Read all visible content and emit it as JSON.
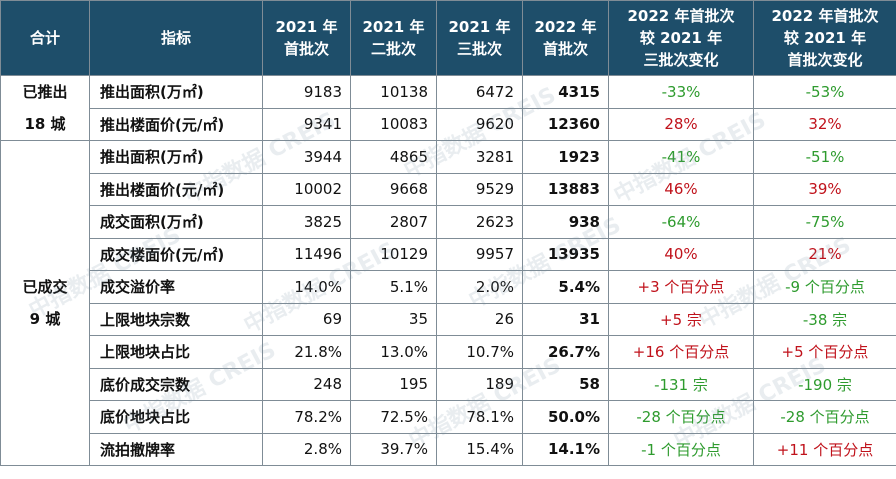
{
  "colors": {
    "header_bg": "#1e4e6a",
    "positive": "#c0121b",
    "negative": "#2e9b2e"
  },
  "header": {
    "c0": "合计",
    "c1": "指标",
    "c2": [
      "2021 年",
      "首批次"
    ],
    "c3": [
      "2021 年",
      "二批次"
    ],
    "c4": [
      "2021 年",
      "三批次"
    ],
    "c5": [
      "2022 年",
      "首批次"
    ],
    "c6": [
      "2022 年首批次",
      "较 2021 年",
      "三批次变化"
    ],
    "c7": [
      "2022 年首批次",
      "较 2021 年",
      "首批次变化"
    ]
  },
  "groups": [
    {
      "lines": [
        "已推出",
        "18 城"
      ]
    },
    {
      "lines": [
        "已成交",
        "9 城"
      ]
    }
  ],
  "rows": [
    {
      "indicator": "推出面积(万㎡)",
      "v2021_1": "9183",
      "v2021_2": "10138",
      "v2021_3": "6472",
      "v2022_1": "4315",
      "chg_vs_3": "-33%",
      "chg_vs_1": "-53%"
    },
    {
      "indicator": "推出楼面价(元/㎡)",
      "v2021_1": "9341",
      "v2021_2": "10083",
      "v2021_3": "9620",
      "v2022_1": "12360",
      "chg_vs_3": "28%",
      "chg_vs_1": "32%"
    },
    {
      "indicator": "推出面积(万㎡)",
      "v2021_1": "3944",
      "v2021_2": "4865",
      "v2021_3": "3281",
      "v2022_1": "1923",
      "chg_vs_3": "-41%",
      "chg_vs_1": "-51%"
    },
    {
      "indicator": "推出楼面价(元/㎡)",
      "v2021_1": "10002",
      "v2021_2": "9668",
      "v2021_3": "9529",
      "v2022_1": "13883",
      "chg_vs_3": "46%",
      "chg_vs_1": "39%"
    },
    {
      "indicator": "成交面积(万㎡)",
      "v2021_1": "3825",
      "v2021_2": "2807",
      "v2021_3": "2623",
      "v2022_1": "938",
      "chg_vs_3": "-64%",
      "chg_vs_1": "-75%"
    },
    {
      "indicator": "成交楼面价(元/㎡)",
      "v2021_1": "11496",
      "v2021_2": "10129",
      "v2021_3": "9957",
      "v2022_1": "13935",
      "chg_vs_3": "40%",
      "chg_vs_1": "21%"
    },
    {
      "indicator": "成交溢价率",
      "v2021_1": "14.0%",
      "v2021_2": "5.1%",
      "v2021_3": "2.0%",
      "v2022_1": "5.4%",
      "chg_vs_3": "+3 个百分点",
      "chg_vs_1": "-9 个百分点"
    },
    {
      "indicator": "上限地块宗数",
      "v2021_1": "69",
      "v2021_2": "35",
      "v2021_3": "26",
      "v2022_1": "31",
      "chg_vs_3": "+5 宗",
      "chg_vs_1": "-38 宗"
    },
    {
      "indicator": "上限地块占比",
      "v2021_1": "21.8%",
      "v2021_2": "13.0%",
      "v2021_3": "10.7%",
      "v2022_1": "26.7%",
      "chg_vs_3": "+16 个百分点",
      "chg_vs_1": "+5 个百分点"
    },
    {
      "indicator": "底价成交宗数",
      "v2021_1": "248",
      "v2021_2": "195",
      "v2021_3": "189",
      "v2022_1": "58",
      "chg_vs_3": "-131 宗",
      "chg_vs_1": "-190 宗"
    },
    {
      "indicator": "底价地块占比",
      "v2021_1": "78.2%",
      "v2021_2": "72.5%",
      "v2021_3": "78.1%",
      "v2022_1": "50.0%",
      "chg_vs_3": "-28 个百分点",
      "chg_vs_1": "-28 个百分点"
    },
    {
      "indicator": "流拍撤牌率",
      "v2021_1": "2.8%",
      "v2021_2": "39.7%",
      "v2021_3": "15.4%",
      "v2022_1": "14.1%",
      "chg_vs_3": "-1 个百分点",
      "chg_vs_1": "+11 个百分点"
    }
  ],
  "watermark": "中指数据 CREIS"
}
